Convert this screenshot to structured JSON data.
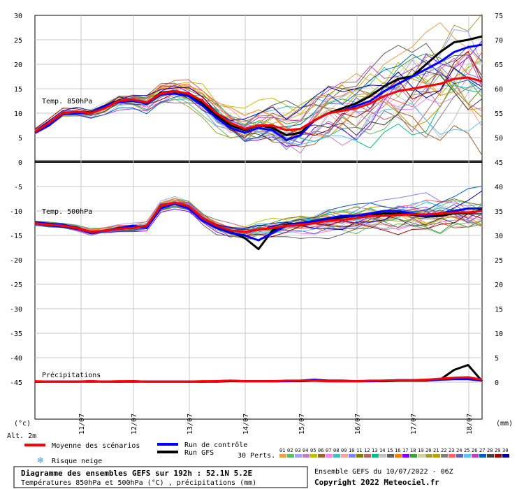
{
  "chart_data": {
    "type": "line",
    "x_dates": [
      "11/07",
      "12/07",
      "13/07",
      "14/07",
      "15/07",
      "16/07",
      "17/07",
      "18/07"
    ],
    "left_ticks": [
      30,
      25,
      20,
      15,
      10,
      5,
      0,
      -5,
      -10,
      -15,
      -20,
      -25,
      -30,
      -35,
      -40,
      -45
    ],
    "right_ticks": [
      75,
      70,
      65,
      60,
      55,
      50,
      45,
      40,
      35,
      30,
      25,
      20,
      15,
      10,
      5,
      0
    ],
    "left_unit": "(°c)",
    "right_unit": "(mm)",
    "altitude_label": "Alt. 2m",
    "panels": [
      {
        "label": "Temp. 850hPa",
        "ylim": [
          0,
          30
        ]
      },
      {
        "label": "Temp. 500hPa",
        "ylim": [
          -50,
          0
        ]
      },
      {
        "label": "Précipitations",
        "ylim": [
          0,
          45
        ]
      }
    ],
    "x": [
      0,
      6,
      12,
      18,
      24,
      30,
      36,
      42,
      48,
      54,
      60,
      66,
      72,
      78,
      84,
      90,
      96,
      102,
      108,
      114,
      120,
      126,
      132,
      138,
      144,
      150,
      156,
      162,
      168,
      174,
      180,
      186,
      192
    ],
    "series": [
      {
        "name": "Moyenne des scénarios",
        "color": "#ff0000",
        "role": "mean",
        "t850": [
          6.2,
          8.0,
          10.0,
          10.3,
          10.0,
          11.0,
          12.5,
          12.8,
          12.2,
          14.0,
          14.5,
          14.0,
          12.5,
          10.0,
          8.0,
          6.8,
          7.5,
          7.5,
          6.5,
          6.8,
          8.5,
          10.0,
          10.5,
          11.0,
          12.0,
          13.5,
          14.5,
          15.0,
          15.5,
          16.0,
          17.0,
          17.3,
          16.5
        ],
        "t500": [
          -12.5,
          -12.8,
          -13.0,
          -13.5,
          -14.3,
          -14.0,
          -13.6,
          -13.5,
          -13.0,
          -9.0,
          -8.3,
          -9.0,
          -11.5,
          -13.0,
          -14.0,
          -14.3,
          -13.8,
          -13.5,
          -13.0,
          -12.8,
          -12.5,
          -12.0,
          -11.8,
          -11.5,
          -11.0,
          -11.0,
          -10.8,
          -10.7,
          -10.7,
          -10.5,
          -10.3,
          -10.3,
          -10.0
        ],
        "precip": [
          0.2,
          0.1,
          0.1,
          0.1,
          0.2,
          0.1,
          0.2,
          0.2,
          0.1,
          0.1,
          0.1,
          0.1,
          0.2,
          0.2,
          0.3,
          0.2,
          0.2,
          0.2,
          0.3,
          0.3,
          0.3,
          0.2,
          0.2,
          0.2,
          0.3,
          0.3,
          0.4,
          0.4,
          0.5,
          0.7,
          0.9,
          1.0,
          0.5
        ]
      },
      {
        "name": "Run de contrôle",
        "color": "#0000ff",
        "role": "control",
        "t850": [
          6.0,
          7.5,
          9.8,
          10.0,
          10.0,
          11.5,
          12.3,
          12.5,
          12.0,
          13.8,
          14.0,
          13.5,
          11.5,
          9.0,
          7.0,
          6.0,
          7.0,
          6.5,
          4.5,
          5.5,
          8.5,
          10.0,
          10.5,
          11.5,
          12.5,
          14.5,
          16.0,
          17.5,
          19.0,
          20.5,
          22.5,
          23.5,
          24.0
        ],
        "t500": [
          -12.3,
          -12.6,
          -12.8,
          -13.5,
          -14.5,
          -14.0,
          -13.5,
          -13.0,
          -13.5,
          -9.5,
          -8.5,
          -9.5,
          -12.0,
          -13.5,
          -14.5,
          -15.0,
          -16.0,
          -14.5,
          -13.0,
          -12.5,
          -12.0,
          -11.5,
          -11.0,
          -11.0,
          -10.5,
          -10.0,
          -10.0,
          -10.5,
          -11.0,
          -10.5,
          -10.0,
          -9.5,
          -9.5
        ],
        "precip": [
          0.1,
          0.1,
          0.1,
          0.1,
          0.2,
          0.1,
          0.1,
          0.2,
          0.1,
          0.1,
          0.1,
          0.1,
          0.1,
          0.2,
          0.3,
          0.2,
          0.2,
          0.2,
          0.2,
          0.3,
          0.5,
          0.3,
          0.3,
          0.2,
          0.2,
          0.3,
          0.4,
          0.4,
          0.4,
          0.5,
          0.6,
          0.6,
          0.3
        ]
      },
      {
        "name": "Run GFS",
        "color": "#000000",
        "role": "gfs",
        "t850": [
          6.1,
          7.8,
          10.0,
          10.2,
          10.1,
          11.2,
          12.5,
          12.6,
          12.0,
          14.2,
          14.5,
          13.8,
          12.0,
          9.5,
          7.5,
          6.5,
          7.5,
          7.0,
          5.5,
          6.0,
          8.5,
          10.0,
          11.0,
          12.0,
          13.5,
          15.5,
          17.0,
          17.5,
          20.0,
          22.5,
          24.5,
          25.0,
          25.7
        ],
        "t500": [
          -12.4,
          -12.7,
          -12.9,
          -13.4,
          -14.4,
          -14.0,
          -13.5,
          -13.2,
          -13.2,
          -9.2,
          -8.5,
          -9.3,
          -11.8,
          -13.2,
          -14.3,
          -15.5,
          -17.8,
          -14.0,
          -12.8,
          -12.5,
          -12.2,
          -11.8,
          -11.3,
          -11.0,
          -10.8,
          -10.5,
          -10.5,
          -10.8,
          -11.2,
          -11.0,
          -10.5,
          -10.5,
          -9.8
        ],
        "precip": [
          0.1,
          0.1,
          0.1,
          0.1,
          0.1,
          0.1,
          0.1,
          0.1,
          0.1,
          0.1,
          0.1,
          0.1,
          0.1,
          0.1,
          0.2,
          0.2,
          0.2,
          0.2,
          0.2,
          0.2,
          0.3,
          0.2,
          0.2,
          0.2,
          0.2,
          0.2,
          0.3,
          0.3,
          0.3,
          0.5,
          2.5,
          3.5,
          0.2
        ]
      }
    ],
    "perturbation_colors": [
      "#e8a040",
      "#60c060",
      "#a0a0ff",
      "#c080c0",
      "#c0c000",
      "#a06030",
      "#ff80ff",
      "#40c0c0",
      "#ffa0a0",
      "#8080ff",
      "#808000",
      "#c06060",
      "#00c080",
      "#c0c0c0",
      "#606060",
      "#ff8000",
      "#8000ff",
      "#40a040",
      "#d0d0a0",
      "#a0a040",
      "#c0a000",
      "#808080",
      "#ff6060",
      "#6060c0",
      "#60c0ff",
      "#c040c0",
      "#0060c0",
      "#404040",
      "#a00000",
      "#0000a0"
    ]
  },
  "legend": {
    "mean_label": "Moyenne des scénarios",
    "control_label": "Run de contrôle",
    "gfs_label": "Run GFS",
    "snow_label": "Risque neige",
    "perts_label": "30 Perts.",
    "pert_numbers": [
      "01",
      "02",
      "03",
      "04",
      "05",
      "06",
      "07",
      "08",
      "09",
      "10",
      "11",
      "12",
      "13",
      "14",
      "15",
      "16",
      "17",
      "18",
      "19",
      "20",
      "21",
      "22",
      "23",
      "24",
      "25",
      "26",
      "27",
      "28",
      "29",
      "30"
    ]
  },
  "footer": {
    "title": "Diagramme des ensembles GEFS sur 192h : 52.1N 5.2E",
    "subtitle": "Températures 850hPa et 500hPa (°C) , précipitations (mm)",
    "run_info": "Ensemble GEFS du 10/07/2022 - 06Z",
    "copyright": "Copyright 2022 Meteociel.fr"
  }
}
